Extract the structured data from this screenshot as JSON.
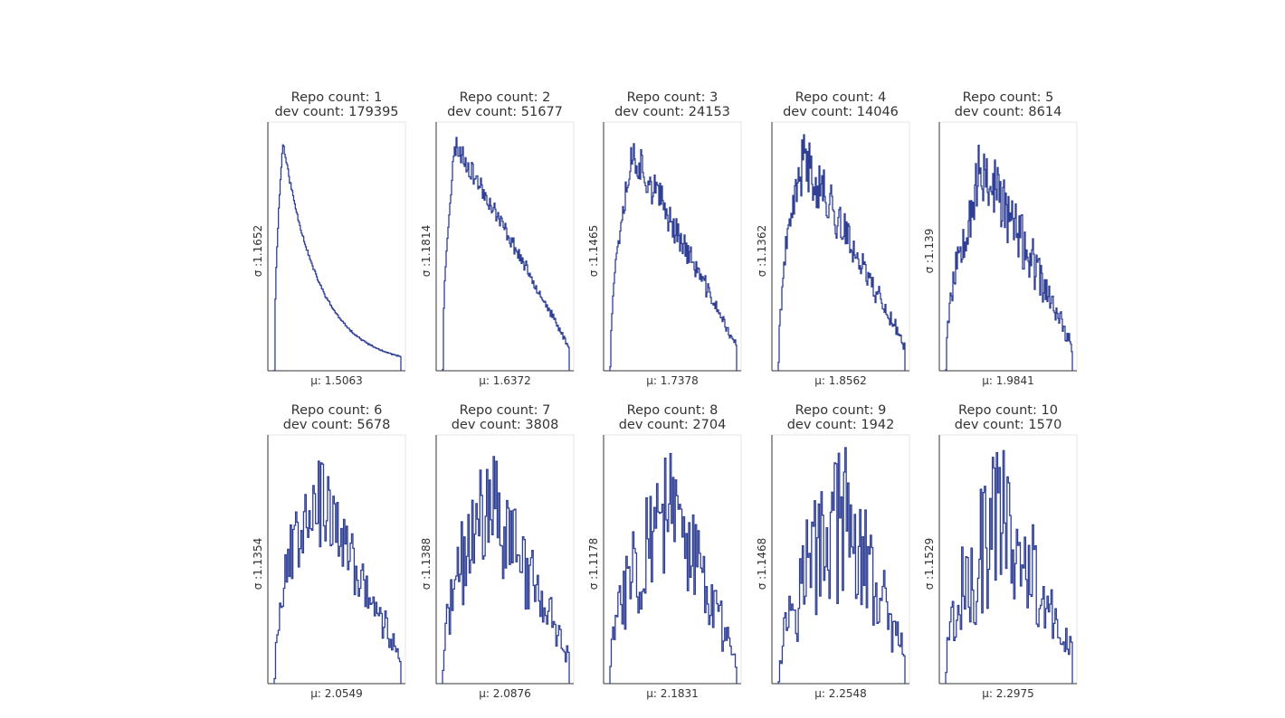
{
  "chart_data": [
    {
      "type": "histogram-step",
      "title_line1": "Repo count: 1",
      "title_line2": "dev count: 179395",
      "xlabel": "μ: 1.5063",
      "ylabel": "σ :1.1652",
      "skew": "right-heavy",
      "peak_at": 0.07,
      "noise": 0.015,
      "seed": 11
    },
    {
      "type": "histogram-step",
      "title_line1": "Repo count: 2",
      "title_line2": "dev count: 51677",
      "xlabel": "μ: 1.6372",
      "ylabel": "σ :1.1814",
      "peak_at": 0.1,
      "noise": 0.05,
      "seed": 23
    },
    {
      "type": "histogram-step",
      "title_line1": "Repo count: 3",
      "title_line2": "dev count: 24153",
      "xlabel": "μ: 1.7378",
      "ylabel": "σ :1.1465",
      "peak_at": 0.18,
      "noise": 0.09,
      "seed": 37
    },
    {
      "type": "histogram-step",
      "title_line1": "Repo count: 4",
      "title_line2": "dev count: 14046",
      "xlabel": "μ: 1.8562",
      "ylabel": "σ :1.1362",
      "peak_at": 0.2,
      "noise": 0.12,
      "seed": 41
    },
    {
      "type": "histogram-step",
      "title_line1": "Repo count: 5",
      "title_line2": "dev count: 8614",
      "xlabel": "μ: 1.9841",
      "ylabel": "σ :1.139",
      "peak_at": 0.3,
      "noise": 0.17,
      "seed": 53
    },
    {
      "type": "histogram-step",
      "title_line1": "Repo count: 6",
      "title_line2": "dev count: 5678",
      "xlabel": "μ: 2.0549",
      "ylabel": "σ :1.1354",
      "peak_at": 0.3,
      "noise": 0.2,
      "seed": 67
    },
    {
      "type": "histogram-step",
      "title_line1": "Repo count: 7",
      "title_line2": "dev count: 3808",
      "xlabel": "μ: 2.0876",
      "ylabel": "σ :1.1388",
      "peak_at": 0.38,
      "noise": 0.26,
      "seed": 71
    },
    {
      "type": "histogram-step",
      "title_line1": "Repo count: 8",
      "title_line2": "dev count: 2704",
      "xlabel": "μ: 2.1831",
      "ylabel": "σ :1.1178",
      "peak_at": 0.45,
      "noise": 0.3,
      "seed": 83
    },
    {
      "type": "histogram-step",
      "title_line1": "Repo count: 9",
      "title_line2": "dev count: 1942",
      "xlabel": "μ: 2.2548",
      "ylabel": "σ :1.1468",
      "peak_at": 0.5,
      "noise": 0.34,
      "seed": 97
    },
    {
      "type": "histogram-step",
      "title_line1": "Repo count: 10",
      "title_line2": "dev count: 1570",
      "xlabel": "μ: 2.2975",
      "ylabel": "σ :1.1529",
      "peak_at": 0.45,
      "noise": 0.36,
      "seed": 101
    }
  ],
  "colors": {
    "series": "#2f3f96",
    "spine": "#333333",
    "frame": "#e6e6e6",
    "text": "#333333"
  }
}
